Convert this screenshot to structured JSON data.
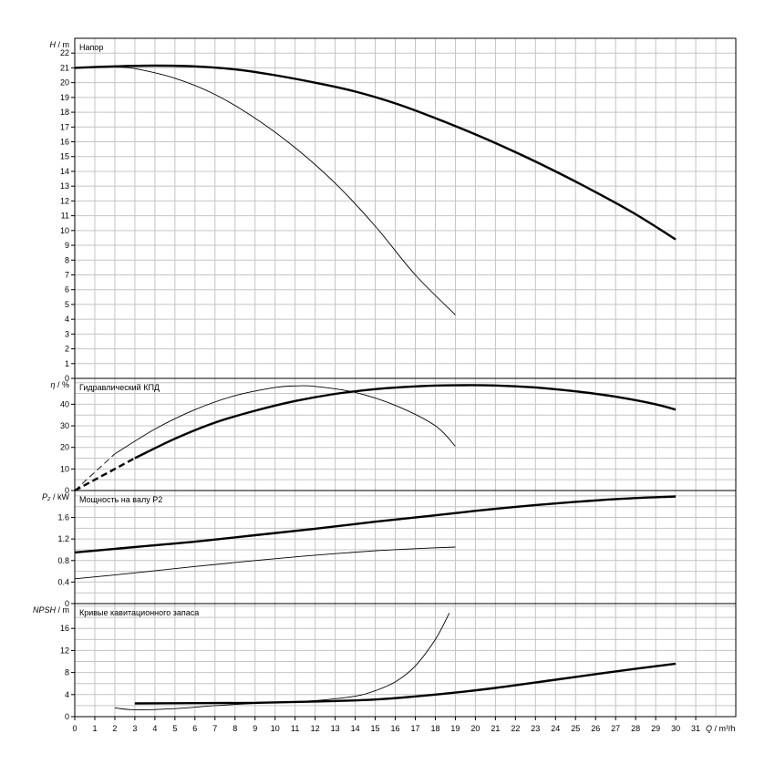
{
  "chart_data": {
    "type": "line",
    "x_axis": {
      "label_prefix": "Q",
      "label_unit": "m³/h",
      "ticks": [
        "0",
        "1",
        "2",
        "3",
        "4",
        "5",
        "6",
        "7",
        "8",
        "9",
        "10",
        "11",
        "12",
        "13",
        "14",
        "15",
        "16",
        "17",
        "18",
        "19",
        "20",
        "21",
        "22",
        "23",
        "24",
        "25",
        "26",
        "27",
        "28",
        "29",
        "30",
        "31"
      ],
      "range": [
        0,
        33
      ]
    },
    "panels": [
      {
        "id": "head",
        "title": "Напор",
        "ylabel_symbol": "H",
        "ylabel_unit": "m",
        "ylim": [
          0,
          23
        ],
        "yticks": [
          "0",
          "1",
          "2",
          "3",
          "4",
          "5",
          "6",
          "7",
          "8",
          "9",
          "10",
          "11",
          "12",
          "13",
          "14",
          "15",
          "16",
          "17",
          "18",
          "19",
          "20",
          "21",
          "22"
        ],
        "ytick_values": [
          0,
          1,
          2,
          3,
          4,
          5,
          6,
          7,
          8,
          9,
          10,
          11,
          12,
          13,
          14,
          15,
          16,
          17,
          18,
          19,
          20,
          21,
          22
        ],
        "series": [
          {
            "style": "thick",
            "points": [
              [
                0,
                21.0
              ],
              [
                2,
                21.1
              ],
              [
                4,
                21.15
              ],
              [
                6,
                21.1
              ],
              [
                8,
                20.9
              ],
              [
                10,
                20.5
              ],
              [
                12,
                20.0
              ],
              [
                14,
                19.4
              ],
              [
                16,
                18.6
              ],
              [
                18,
                17.6
              ],
              [
                20,
                16.5
              ],
              [
                22,
                15.3
              ],
              [
                24,
                14.0
              ],
              [
                26,
                12.6
              ],
              [
                28,
                11.1
              ],
              [
                30,
                9.4
              ]
            ]
          },
          {
            "style": "thin",
            "points": [
              [
                0,
                21.0
              ],
              [
                2,
                21.05
              ],
              [
                3,
                20.95
              ],
              [
                5,
                20.3
              ],
              [
                7,
                19.2
              ],
              [
                9,
                17.6
              ],
              [
                11,
                15.6
              ],
              [
                13,
                13.2
              ],
              [
                15,
                10.3
              ],
              [
                17,
                7.0
              ],
              [
                19,
                4.3
              ]
            ]
          }
        ]
      },
      {
        "id": "efficiency",
        "title": "Гидравлический КПД",
        "ylabel_symbol": "η",
        "ylabel_unit": "%",
        "ylim": [
          0,
          52
        ],
        "yticks": [
          "0",
          "10",
          "20",
          "30",
          "40"
        ],
        "ytick_values": [
          0,
          10,
          20,
          30,
          40
        ],
        "series": [
          {
            "style": "thick",
            "points": [
              [
                3,
                15
              ],
              [
                5,
                24
              ],
              [
                7,
                31.5
              ],
              [
                9,
                37
              ],
              [
                11,
                41.5
              ],
              [
                13,
                44.8
              ],
              [
                15,
                47
              ],
              [
                17,
                48.3
              ],
              [
                19,
                48.8
              ],
              [
                21,
                48.7
              ],
              [
                23,
                47.8
              ],
              [
                25,
                46
              ],
              [
                27,
                43.5
              ],
              [
                29,
                40
              ],
              [
                30,
                37.5
              ]
            ]
          },
          {
            "style": "thick-dash",
            "points": [
              [
                0,
                0
              ],
              [
                3,
                15
              ]
            ]
          },
          {
            "style": "thin",
            "points": [
              [
                2,
                17
              ],
              [
                4,
                28.5
              ],
              [
                6,
                37.5
              ],
              [
                8,
                44
              ],
              [
                10,
                47.8
              ],
              [
                11,
                48.5
              ],
              [
                12,
                48.3
              ],
              [
                14,
                45.5
              ],
              [
                16,
                39.5
              ],
              [
                18,
                30
              ],
              [
                19,
                20.5
              ]
            ]
          },
          {
            "style": "thin-dash",
            "points": [
              [
                0,
                0
              ],
              [
                2,
                17
              ]
            ]
          }
        ]
      },
      {
        "id": "power",
        "title": "Мощность на валу P2",
        "ylabel_symbol": "P₂",
        "ylabel_unit": "kW",
        "ylim": [
          0,
          2.1
        ],
        "yticks": [
          "0",
          "0.4",
          "0.8",
          "1.2",
          "1.6"
        ],
        "ytick_values": [
          0,
          0.4,
          0.8,
          1.2,
          1.6
        ],
        "series": [
          {
            "style": "thick",
            "points": [
              [
                0,
                0.95
              ],
              [
                3,
                1.05
              ],
              [
                6,
                1.15
              ],
              [
                9,
                1.27
              ],
              [
                12,
                1.39
              ],
              [
                15,
                1.52
              ],
              [
                18,
                1.64
              ],
              [
                21,
                1.76
              ],
              [
                24,
                1.86
              ],
              [
                27,
                1.94
              ],
              [
                30,
                1.99
              ]
            ]
          },
          {
            "style": "thin",
            "points": [
              [
                0,
                0.46
              ],
              [
                3,
                0.57
              ],
              [
                6,
                0.69
              ],
              [
                9,
                0.8
              ],
              [
                12,
                0.9
              ],
              [
                15,
                0.98
              ],
              [
                17,
                1.02
              ],
              [
                19,
                1.05
              ]
            ]
          }
        ]
      },
      {
        "id": "npsh",
        "title": "Кривые кавитационного запаса",
        "ylabel_symbol": "NPSH",
        "ylabel_unit": "m",
        "ylim": [
          0,
          20.5
        ],
        "yticks": [
          "0",
          "4",
          "8",
          "12",
          "16"
        ],
        "ytick_values": [
          0,
          4,
          8,
          12,
          16
        ],
        "series": [
          {
            "style": "thick",
            "points": [
              [
                3,
                2.4
              ],
              [
                6,
                2.45
              ],
              [
                9,
                2.5
              ],
              [
                12,
                2.75
              ],
              [
                15,
                3.1
              ],
              [
                18,
                4.0
              ],
              [
                21,
                5.2
              ],
              [
                24,
                6.7
              ],
              [
                27,
                8.2
              ],
              [
                30,
                9.6
              ]
            ]
          },
          {
            "style": "thin",
            "points": [
              [
                2,
                1.6
              ],
              [
                3,
                1.25
              ],
              [
                5,
                1.45
              ],
              [
                7,
                2.0
              ],
              [
                10,
                2.6
              ],
              [
                12,
                2.9
              ],
              [
                14,
                3.7
              ],
              [
                15,
                4.7
              ],
              [
                16,
                6.3
              ],
              [
                17,
                9.2
              ],
              [
                18,
                14
              ],
              [
                18.7,
                18.8
              ]
            ]
          }
        ]
      }
    ]
  }
}
